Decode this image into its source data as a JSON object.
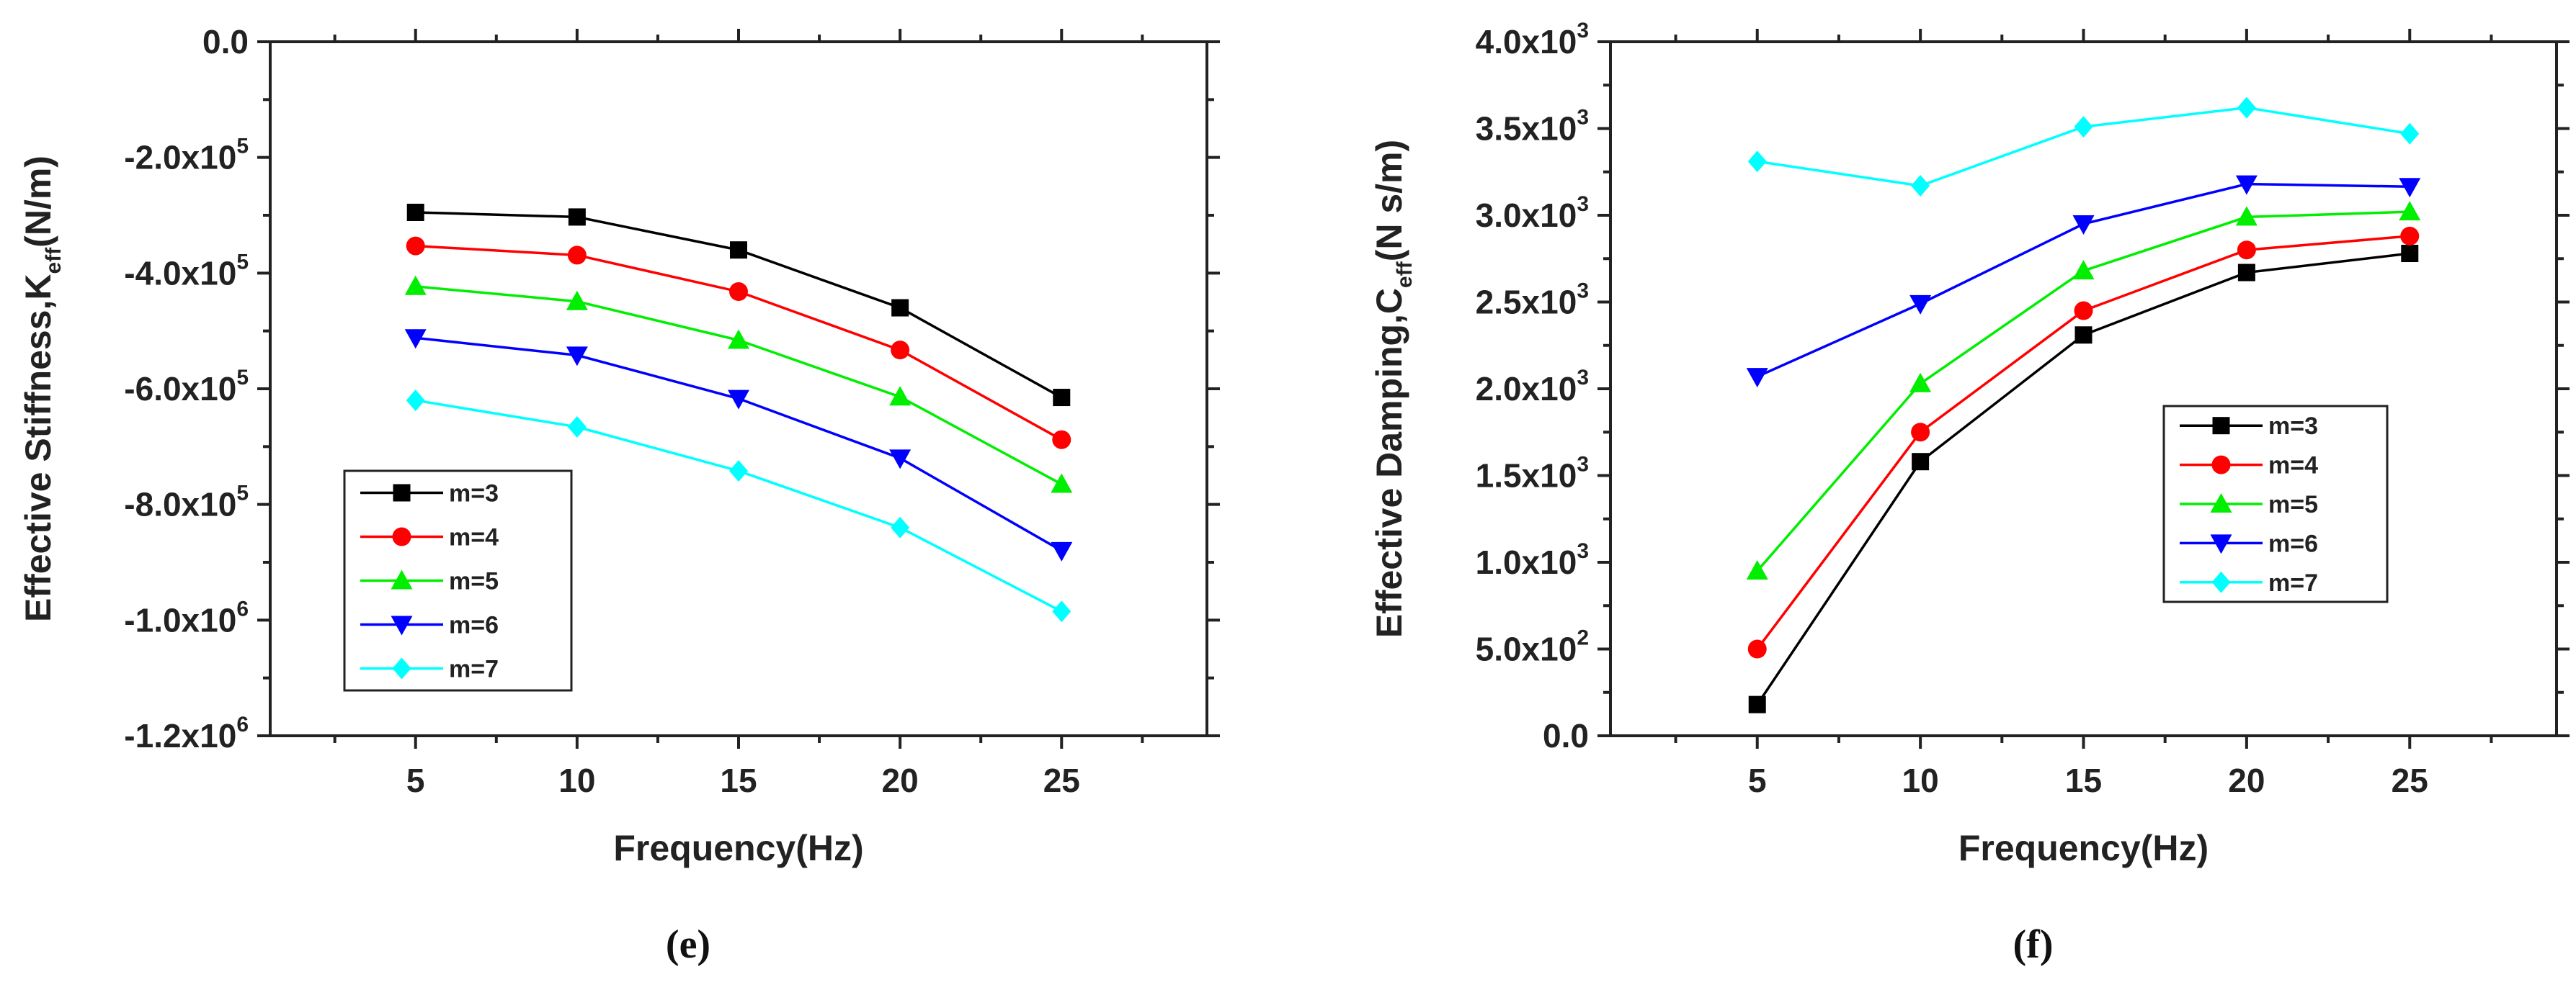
{
  "chart_data": [
    {
      "type": "line",
      "panel_label": "e",
      "caption": "(e)",
      "xlabel": "Frequency(Hz)",
      "ylabel_main": "Effective Stiffness,K",
      "ylabel_sub": "eff",
      "ylabel_unit": "(N/m)",
      "x": [
        5,
        10,
        15,
        20,
        25
      ],
      "xlim": [
        0.5,
        29.5
      ],
      "ylim": [
        -1200000,
        0
      ],
      "xticks": [
        5,
        10,
        15,
        20,
        25
      ],
      "yticks": [
        {
          "value": 0,
          "label": "0.0",
          "exp": ""
        },
        {
          "value": -200000,
          "label": "-2.0x10",
          "exp": "5"
        },
        {
          "value": -400000,
          "label": "-4.0x10",
          "exp": "5"
        },
        {
          "value": -600000,
          "label": "-6.0x10",
          "exp": "5"
        },
        {
          "value": -800000,
          "label": "-8.0x10",
          "exp": "5"
        },
        {
          "value": -1000000,
          "label": "-1.0x10",
          "exp": "6"
        },
        {
          "value": -1200000,
          "label": "-1.2x10",
          "exp": "6"
        }
      ],
      "legend_position": "bottom-left",
      "series": [
        {
          "name": "m=3",
          "color": "#000000",
          "marker": "square",
          "values": [
            -295000,
            -303000,
            -360000,
            -460000,
            -615000
          ]
        },
        {
          "name": "m=4",
          "color": "#ff0000",
          "marker": "circle",
          "values": [
            -353000,
            -369000,
            -432000,
            -533000,
            -688000
          ]
        },
        {
          "name": "m=5",
          "color": "#00ee00",
          "marker": "triangle-up",
          "values": [
            -423000,
            -449000,
            -516000,
            -614000,
            -765000
          ]
        },
        {
          "name": "m=6",
          "color": "#0000ff",
          "marker": "triangle-down",
          "values": [
            -512000,
            -542000,
            -617000,
            -720000,
            -880000
          ]
        },
        {
          "name": "m=7",
          "color": "#00ffff",
          "marker": "diamond",
          "values": [
            -620000,
            -666000,
            -742000,
            -840000,
            -985000
          ]
        }
      ]
    },
    {
      "type": "line",
      "panel_label": "f",
      "caption": "(f)",
      "xlabel": "Frequency(Hz)",
      "ylabel_main": "Effective Damping,C",
      "ylabel_sub": "eff",
      "ylabel_unit": "(N s/m)",
      "x": [
        5,
        10,
        15,
        20,
        25
      ],
      "xlim": [
        0.5,
        29.5
      ],
      "ylim": [
        0,
        4000
      ],
      "xticks": [
        5,
        10,
        15,
        20,
        25
      ],
      "yticks": [
        {
          "value": 0,
          "label": "0.0",
          "exp": ""
        },
        {
          "value": 500,
          "label": "5.0x10",
          "exp": "2"
        },
        {
          "value": 1000,
          "label": "1.0x10",
          "exp": "3"
        },
        {
          "value": 1500,
          "label": "1.5x10",
          "exp": "3"
        },
        {
          "value": 2000,
          "label": "2.0x10",
          "exp": "3"
        },
        {
          "value": 2500,
          "label": "2.5x10",
          "exp": "3"
        },
        {
          "value": 3000,
          "label": "3.0x10",
          "exp": "3"
        },
        {
          "value": 3500,
          "label": "3.5x10",
          "exp": "3"
        },
        {
          "value": 4000,
          "label": "4.0x10",
          "exp": "3"
        }
      ],
      "legend_position": "center-right",
      "series": [
        {
          "name": "m=3",
          "color": "#000000",
          "marker": "square",
          "values": [
            180,
            1580,
            2310,
            2670,
            2780
          ]
        },
        {
          "name": "m=4",
          "color": "#ff0000",
          "marker": "circle",
          "values": [
            500,
            1750,
            2450,
            2800,
            2880
          ]
        },
        {
          "name": "m=5",
          "color": "#00ee00",
          "marker": "triangle-up",
          "values": [
            950,
            2030,
            2680,
            2990,
            3020
          ]
        },
        {
          "name": "m=6",
          "color": "#0000ff",
          "marker": "triangle-down",
          "values": [
            2070,
            2490,
            2950,
            3180,
            3165
          ]
        },
        {
          "name": "m=7",
          "color": "#00ffff",
          "marker": "diamond",
          "values": [
            3310,
            3170,
            3510,
            3620,
            3470
          ]
        }
      ]
    }
  ]
}
